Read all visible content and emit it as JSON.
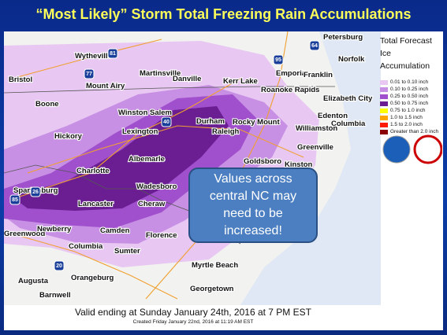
{
  "title": "“Most Likely” Storm Total Freezing Rain Accumulations",
  "legend": {
    "title": [
      "Total Forecast",
      "Ice",
      "Accumulation"
    ],
    "items": [
      {
        "label": "0.01 to 0.10 inch",
        "color": "#e8c8f2"
      },
      {
        "label": "0.10 to 0.25 inch",
        "color": "#c890e4"
      },
      {
        "label": "0.25 to 0.50 inch",
        "color": "#a050cc"
      },
      {
        "label": "0.50 to 0.75 inch",
        "color": "#6a1e92"
      },
      {
        "label": "0.75 to 1.0 inch",
        "color": "#ffff00"
      },
      {
        "label": "1.0 to 1.5 inch",
        "color": "#ffa500"
      },
      {
        "label": "1.5 to 2.0 inch",
        "color": "#ff1a00"
      },
      {
        "label": "Greater than 2.0 inch",
        "color": "#8b0000"
      }
    ]
  },
  "cities": [
    "Petersburg",
    "Norfolk",
    "Wytheville",
    "Martinsville",
    "Danville",
    "Emporia",
    "Franklin",
    "Bristol",
    "Mount Airy",
    "Kerr Lake",
    "Roanoke Rapids",
    "Boone",
    "Elizabeth City",
    "Winston Salem",
    "Durham",
    "Edenton",
    "Rocky Mount",
    "Columbia",
    "Lexington",
    "Raleigh",
    "Williamston",
    "Hickory",
    "Greenville",
    "Albemarle",
    "Goldsboro",
    "Charlotte",
    "Kinston",
    "Spartanburg",
    "Wadesboro",
    "Lancaster",
    "Cheraw",
    "Greenwood",
    "Newberry",
    "Camden",
    "Florence",
    "Columbia",
    "Sumter",
    "Myrtle Beach",
    "Augusta",
    "Orangeburg",
    "Georgetown",
    "Barnwell"
  ],
  "interstates": [
    "81",
    "77",
    "64",
    "95",
    "40",
    "85",
    "26",
    "20"
  ],
  "callout": "Values across central NC may need to be increased!",
  "footer": {
    "valid": "Valid ending at Sunday January 24th, 2016 at 7 PM EST",
    "created": "Created Friday January 22nd, 2016 at 11:19 AM EST"
  }
}
